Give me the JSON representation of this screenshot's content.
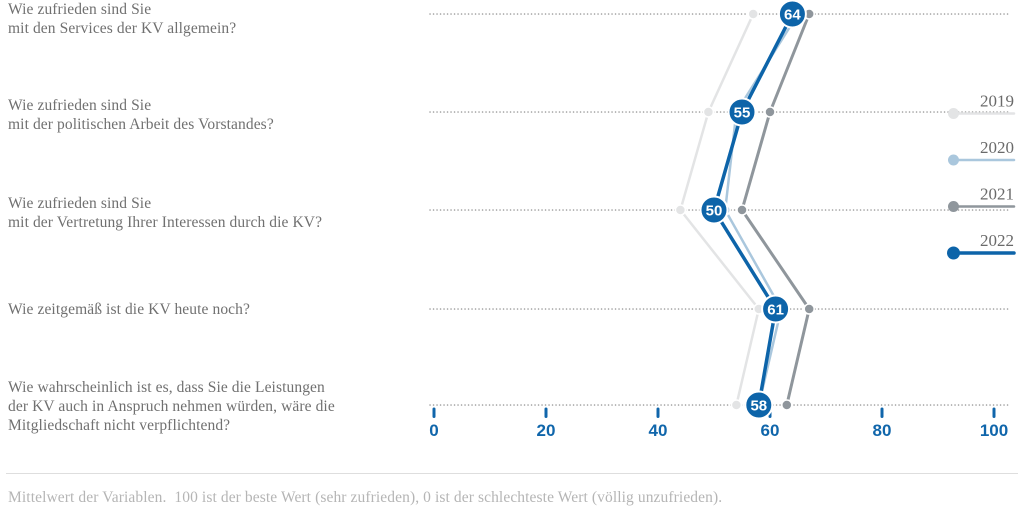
{
  "chart_data": {
    "type": "line",
    "title": "",
    "orientation": "horizontal rows, value on x-axis",
    "grid": "dotted leader line per row",
    "legend_position": "right",
    "x_axis": {
      "min": 0,
      "max": 100,
      "ticks": [
        0,
        20,
        40,
        60,
        80,
        100
      ],
      "tick_labels": [
        "0",
        "20",
        "40",
        "60",
        "80",
        "100"
      ]
    },
    "categories": [
      "Wie zufrieden sind Sie mit den Services der KV allgemein?",
      "Wie zufrieden sind Sie mit der politischen Arbeit des Vorstandes?",
      "Wie zufrieden sind Sie mit der Vertretung Ihrer Interessen durch die KV?",
      "Wie zeitgemäß ist die KV heute noch?",
      "Wie wahrscheinlich ist es, dass Sie die Leistungen der KV auch in Anspruch nehmen würden, wäre die Mitgliedschaft nicht verpflichtend?"
    ],
    "series": [
      {
        "name": "2019",
        "color": "#e3e4e5",
        "values": [
          57,
          49,
          44,
          58,
          54
        ],
        "emphasis": false
      },
      {
        "name": "2020",
        "color": "#aac7dd",
        "values": [
          65,
          54,
          52,
          62,
          58
        ],
        "emphasis": false
      },
      {
        "name": "2021",
        "color": "#8f969c",
        "values": [
          67,
          60,
          55,
          67,
          63
        ],
        "emphasis": false
      },
      {
        "name": "2022",
        "color": "#0d64a9",
        "values": [
          64,
          55,
          50,
          61,
          58
        ],
        "emphasis": true,
        "value_labels": [
          "64",
          "55",
          "50",
          "61",
          "58"
        ]
      }
    ],
    "note": "Mittelwert der Variablen.  100 ist der beste Wert (sehr zufrieden), 0 ist der schlechteste Wert (völlig unzufrieden)."
  },
  "questions": [
    {
      "lines": [
        "Wie zufrieden sind Sie",
        "mit den Services der KV allgemein?"
      ]
    },
    {
      "lines": [
        "Wie zufrieden sind Sie",
        "mit der politischen Arbeit des Vorstandes?"
      ]
    },
    {
      "lines": [
        "Wie zufrieden sind Sie",
        "mit der Vertretung Ihrer Interessen durch die KV?"
      ]
    },
    {
      "lines": [
        "Wie zeitgemäß ist die KV heute noch?"
      ]
    },
    {
      "lines": [
        "Wie wahrscheinlich ist es, dass Sie die Leistungen",
        "der KV auch in Anspruch nehmen würden, wäre die",
        "Mitgliedschaft nicht verpflichtend?"
      ]
    }
  ],
  "footer": {
    "note": "Mittelwert der Variablen.  100 ist der beste Wert (sehr zufrieden), 0 ist der schlechteste Wert (völlig unzufrieden)."
  },
  "colors": {
    "axis_blue": "#1066ab",
    "question_text": "#707070",
    "footnote_text": "#b5b5b5",
    "dotted_leader": "#9a9a9a",
    "separator": "#dedede",
    "marker_value_text": "#ffffff"
  }
}
